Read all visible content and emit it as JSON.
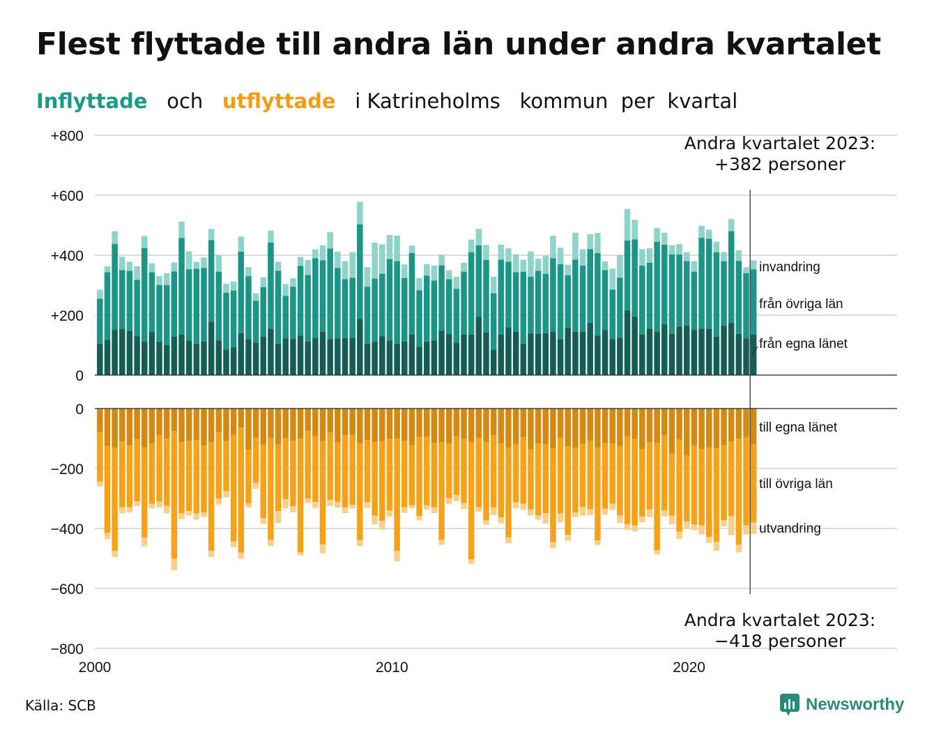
{
  "title": "Flest flyttade till andra län under andra kvartalet",
  "subtitle": {
    "part1": "Inflyttade",
    "part2": "och",
    "part3": "utflyttade",
    "part4": "i Katrineholms",
    "part5": "kommun",
    "part6": "per",
    "part7": "kvartal"
  },
  "source": "Källa: SCB",
  "brand": "Newsworthy",
  "colors": {
    "in_dark": "#155e55",
    "in_mid": "#1b9585",
    "in_light": "#8fd4c9",
    "out_dark": "#d48910",
    "out_mid": "#f6a219",
    "out_light": "#f9d08b",
    "grid": "#dddddd"
  },
  "chart_data": {
    "type": "bar",
    "x_start": 2000,
    "quarters_per_year": 4,
    "x_ticks": [
      "2000",
      "2010",
      "2020"
    ],
    "xlim": [
      2000,
      2027
    ],
    "top": {
      "ylim": [
        0,
        800
      ],
      "y_ticks": [
        "0",
        "+200",
        "+400",
        "+600",
        "+800"
      ],
      "series": [
        {
          "name": "från egna länet",
          "values": [
            105,
            118,
            150,
            155,
            148,
            130,
            112,
            145,
            112,
            100,
            128,
            135,
            115,
            105,
            112,
            178,
            115,
            85,
            92,
            140,
            120,
            108,
            128,
            155,
            105,
            122,
            120,
            132,
            112,
            125,
            145,
            120,
            122,
            125,
            125,
            188,
            105,
            112,
            130,
            115,
            105,
            112,
            135,
            95,
            112,
            115,
            148,
            138,
            108,
            135,
            135,
            195,
            142,
            85,
            135,
            160,
            145,
            105,
            140,
            138,
            140,
            145,
            120,
            158,
            145,
            145,
            175,
            132,
            150,
            120,
            125,
            217,
            195,
            135,
            155,
            145,
            170,
            138,
            162,
            165,
            150,
            155,
            155,
            128,
            165,
            175,
            138,
            122,
            135
          ]
        },
        {
          "name": "från övriga län",
          "values": [
            150,
            225,
            288,
            195,
            200,
            188,
            312,
            198,
            188,
            200,
            218,
            322,
            238,
            250,
            245,
            272,
            230,
            190,
            190,
            272,
            210,
            140,
            165,
            287,
            243,
            142,
            175,
            232,
            222,
            265,
            238,
            302,
            235,
            195,
            200,
            315,
            190,
            210,
            208,
            272,
            275,
            212,
            272,
            188,
            220,
            200,
            218,
            182,
            180,
            210,
            275,
            238,
            242,
            188,
            250,
            218,
            198,
            240,
            188,
            210,
            198,
            245,
            250,
            175,
            240,
            220,
            245,
            275,
            200,
            165,
            200,
            232,
            258,
            230,
            220,
            300,
            265,
            265,
            240,
            215,
            195,
            303,
            300,
            282,
            215,
            305,
            243,
            218,
            218
          ]
        },
        {
          "name": "invandring",
          "values": [
            30,
            20,
            42,
            45,
            30,
            45,
            40,
            30,
            30,
            40,
            30,
            55,
            60,
            22,
            35,
            38,
            55,
            30,
            30,
            50,
            30,
            25,
            33,
            40,
            30,
            40,
            28,
            30,
            50,
            30,
            50,
            55,
            55,
            60,
            85,
            75,
            65,
            120,
            98,
            80,
            85,
            45,
            25,
            40,
            38,
            50,
            35,
            30,
            40,
            30,
            42,
            55,
            50,
            55,
            50,
            45,
            60,
            40,
            85,
            40,
            60,
            75,
            55,
            35,
            90,
            55,
            50,
            67,
            30,
            70,
            75,
            105,
            65,
            55,
            48,
            45,
            40,
            30,
            35,
            30,
            35,
            40,
            30,
            35,
            30,
            40,
            35,
            20,
            30
          ]
        }
      ]
    },
    "bottom": {
      "ylim": [
        -800,
        0
      ],
      "y_ticks": [
        "0",
        "−200",
        "−400",
        "−600",
        "−800"
      ],
      "series": [
        {
          "name": "till egna länet",
          "values": [
            -78,
            -125,
            -130,
            -110,
            -123,
            -103,
            -130,
            -118,
            -90,
            -100,
            -75,
            -112,
            -107,
            -105,
            -124,
            -112,
            -78,
            -108,
            -88,
            -63,
            -137,
            -98,
            -120,
            -98,
            -120,
            -98,
            -108,
            -100,
            -75,
            -92,
            -108,
            -80,
            -113,
            -89,
            -88,
            -117,
            -105,
            -112,
            -110,
            -100,
            -100,
            -108,
            -123,
            -93,
            -94,
            -114,
            -113,
            -116,
            -92,
            -100,
            -113,
            -98,
            -113,
            -88,
            -116,
            -130,
            -118,
            -96,
            -136,
            -116,
            -120,
            -134,
            -98,
            -126,
            -130,
            -118,
            -108,
            -130,
            -114,
            -118,
            -125,
            -92,
            -100,
            -135,
            -113,
            -115,
            -90,
            -150,
            -104,
            -157,
            -123,
            -135,
            -130,
            -133,
            -123,
            -110,
            -100,
            -95,
            -120
          ]
        },
        {
          "name": "till övriga län",
          "values": [
            -165,
            -290,
            -345,
            -220,
            -206,
            -207,
            -300,
            -200,
            -220,
            -225,
            -425,
            -237,
            -235,
            -245,
            -223,
            -363,
            -222,
            -168,
            -355,
            -418,
            -180,
            -150,
            -245,
            -340,
            -222,
            -205,
            -218,
            -380,
            -225,
            -220,
            -345,
            -225,
            -198,
            -240,
            -233,
            -322,
            -207,
            -245,
            -265,
            -240,
            -375,
            -222,
            -200,
            -265,
            -228,
            -215,
            -325,
            -183,
            -196,
            -215,
            -390,
            -232,
            -260,
            -242,
            -247,
            -300,
            -195,
            -222,
            -201,
            -240,
            -229,
            -312,
            -252,
            -295,
            -217,
            -210,
            -228,
            -310,
            -220,
            -200,
            -232,
            -293,
            -290,
            -225,
            -224,
            -357,
            -250,
            -207,
            -307,
            -220,
            -263,
            -255,
            -298,
            -312,
            -250,
            -248,
            -355,
            -295,
            -260
          ]
        },
        {
          "name": "utvandring",
          "values": [
            -17,
            -20,
            -20,
            -20,
            -18,
            -15,
            -30,
            -15,
            -20,
            -25,
            -40,
            -20,
            -15,
            -20,
            -15,
            -20,
            -20,
            -20,
            -20,
            -20,
            -13,
            -20,
            -20,
            -20,
            -40,
            -30,
            -20,
            -10,
            -15,
            -20,
            -30,
            -20,
            -20,
            -20,
            -12,
            -20,
            -20,
            -30,
            -30,
            -20,
            -35,
            -18,
            -10,
            -15,
            -15,
            -20,
            -17,
            -20,
            -20,
            -20,
            -15,
            -15,
            -15,
            -25,
            -20,
            -20,
            -20,
            -20,
            -20,
            -15,
            -35,
            -20,
            -30,
            -20,
            -15,
            -30,
            -20,
            -15,
            -20,
            -20,
            -25,
            -20,
            -20,
            -20,
            -25,
            -15,
            -20,
            -30,
            -25,
            -25,
            -20,
            -30,
            -20,
            -30,
            -20,
            -65,
            -25,
            -30,
            -38
          ]
        }
      ]
    },
    "segment_labels_top": [
      "invandring",
      "från övriga län",
      "från egna länet"
    ],
    "segment_labels_bottom": [
      "till egna länet",
      "till övriga län",
      "utvandring"
    ],
    "annotation_top": [
      "Andra kvartalet 2023:",
      "+382 personer"
    ],
    "annotation_bottom": [
      "Andra kvartalet 2023:",
      "−418 personer"
    ]
  }
}
